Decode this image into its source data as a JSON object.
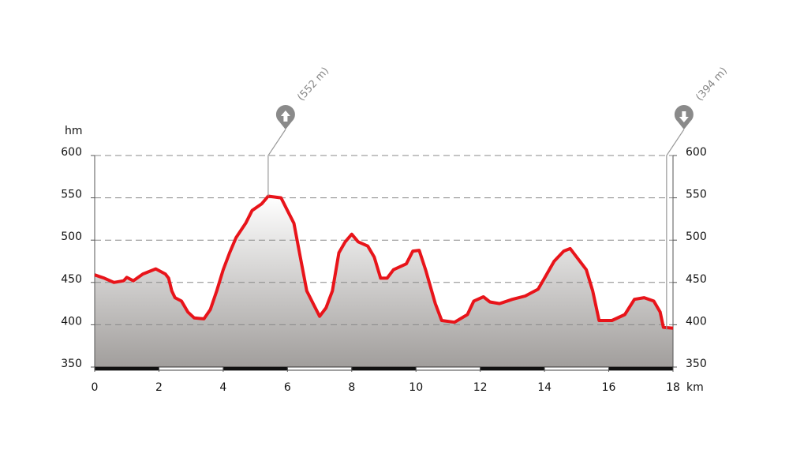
{
  "chart_data": {
    "type": "area",
    "x_label": "km",
    "y_label": "hm",
    "x": [
      0,
      0.3,
      0.6,
      0.9,
      1.0,
      1.2,
      1.5,
      1.9,
      2.2,
      2.3,
      2.4,
      2.5,
      2.7,
      2.9,
      3.1,
      3.4,
      3.6,
      3.8,
      4.0,
      4.2,
      4.4,
      4.7,
      4.9,
      5.2,
      5.4,
      5.8,
      6.0,
      6.2,
      6.4,
      6.6,
      6.8,
      7.0,
      7.2,
      7.4,
      7.6,
      7.8,
      8.0,
      8.2,
      8.5,
      8.7,
      8.9,
      9.1,
      9.3,
      9.7,
      9.9,
      10.1,
      10.3,
      10.6,
      10.8,
      11.2,
      11.6,
      11.8,
      12.1,
      12.3,
      12.6,
      13.0,
      13.4,
      13.8,
      14.0,
      14.3,
      14.6,
      14.8,
      15.0,
      15.3,
      15.5,
      15.7,
      16.1,
      16.5,
      16.8,
      17.1,
      17.4,
      17.6,
      17.7,
      18.0
    ],
    "values": [
      459,
      455,
      450,
      452,
      456,
      452,
      460,
      466,
      460,
      455,
      440,
      432,
      428,
      415,
      408,
      407,
      418,
      440,
      465,
      485,
      503,
      520,
      535,
      543,
      552,
      550,
      535,
      520,
      480,
      440,
      425,
      410,
      420,
      440,
      485,
      498,
      507,
      498,
      493,
      480,
      455,
      455,
      465,
      472,
      487,
      488,
      465,
      425,
      405,
      403,
      412,
      428,
      433,
      427,
      425,
      430,
      434,
      442,
      455,
      475,
      487,
      490,
      480,
      465,
      440,
      405,
      405,
      412,
      430,
      432,
      428,
      415,
      397,
      396
    ],
    "color": "#e8141a",
    "xlim": [
      0,
      18
    ],
    "ylim": [
      350,
      600
    ],
    "xticks": [
      0,
      2,
      4,
      6,
      8,
      10,
      12,
      14,
      16,
      18
    ],
    "yticks": [
      350,
      400,
      450,
      500,
      550,
      600
    ],
    "grid": true,
    "annotations": [
      {
        "label": "(552 m)",
        "x": 5.4,
        "value": 552,
        "icon": "up"
      },
      {
        "label": "(394 m)",
        "x": 17.8,
        "value": 394,
        "icon": "down"
      }
    ]
  }
}
